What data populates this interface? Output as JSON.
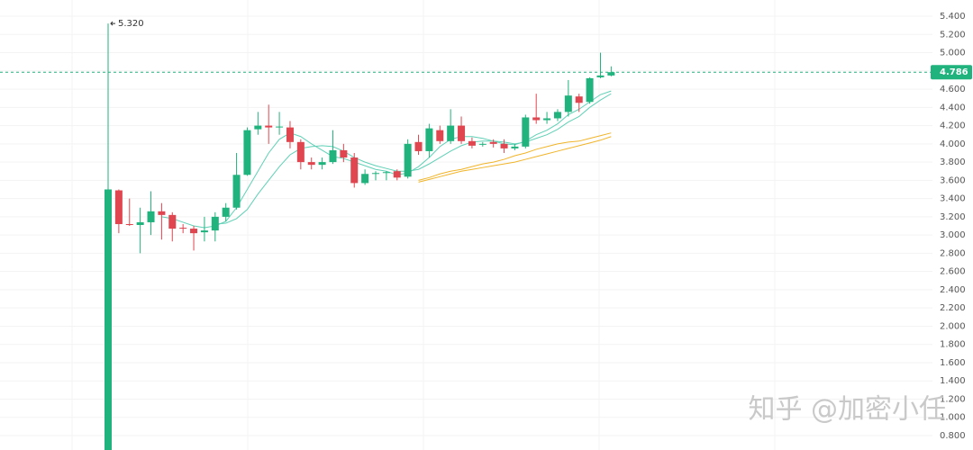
{
  "chart_data": {
    "type": "candlestick",
    "categories": [
      null,
      null,
      null,
      null,
      null,
      null,
      null,
      null,
      null,
      null,
      null,
      null,
      null,
      null,
      null,
      null,
      null,
      null,
      null,
      null,
      null,
      null,
      null,
      null,
      null,
      null,
      null,
      null,
      null,
      null,
      null,
      null,
      null,
      null,
      null,
      null,
      null,
      null,
      null,
      null,
      null,
      null,
      null,
      null,
      null,
      null,
      null,
      null
    ],
    "open": [
      0.6,
      3.49,
      3.12,
      3.11,
      3.14,
      3.26,
      3.22,
      3.08,
      3.07,
      3.03,
      3.05,
      3.2,
      3.3,
      3.66,
      4.16,
      4.2,
      4.18,
      4.18,
      4.02,
      3.8,
      3.77,
      3.8,
      3.93,
      3.85,
      3.57,
      3.67,
      3.68,
      3.7,
      3.64,
      4.02,
      3.92,
      4.15,
      4.03,
      4.2,
      4.03,
      3.99,
      4.02,
      4.0,
      3.95,
      3.97,
      4.29,
      4.26,
      4.28,
      4.35,
      4.52,
      4.46,
      4.73,
      4.75
    ],
    "high": [
      5.32,
      3.5,
      3.4,
      3.3,
      3.48,
      3.35,
      3.25,
      3.12,
      3.1,
      3.2,
      3.25,
      3.35,
      3.9,
      4.18,
      4.35,
      4.43,
      4.35,
      4.25,
      4.05,
      3.85,
      3.85,
      4.15,
      4.0,
      3.9,
      3.72,
      3.7,
      3.7,
      3.72,
      4.05,
      4.1,
      4.22,
      4.2,
      4.38,
      4.3,
      4.07,
      4.02,
      4.05,
      4.05,
      4.0,
      4.32,
      4.55,
      4.35,
      4.38,
      4.7,
      4.55,
      4.73,
      5.0,
      4.85
    ],
    "low": [
      0.6,
      3.02,
      3.1,
      2.8,
      3.0,
      2.95,
      2.93,
      3.02,
      2.83,
      2.93,
      2.93,
      3.15,
      3.28,
      3.65,
      4.1,
      4.0,
      4.1,
      3.95,
      3.72,
      3.72,
      3.72,
      3.78,
      3.8,
      3.52,
      3.55,
      3.6,
      3.6,
      3.6,
      3.62,
      3.88,
      3.85,
      4.0,
      4.0,
      4.0,
      3.95,
      3.97,
      3.96,
      3.9,
      3.93,
      3.95,
      4.22,
      4.22,
      4.25,
      4.3,
      4.35,
      4.44,
      4.72,
      4.74
    ],
    "close": [
      3.5,
      3.12,
      3.11,
      3.14,
      3.26,
      3.22,
      3.07,
      3.07,
      3.02,
      3.05,
      3.2,
      3.3,
      3.66,
      4.15,
      4.2,
      4.18,
      4.19,
      4.02,
      3.8,
      3.77,
      3.8,
      3.93,
      3.85,
      3.57,
      3.67,
      3.68,
      3.69,
      3.63,
      4.0,
      3.92,
      4.17,
      4.03,
      4.2,
      4.03,
      3.98,
      4.0,
      4.0,
      3.95,
      3.97,
      4.29,
      4.26,
      4.28,
      4.35,
      4.53,
      4.45,
      4.72,
      4.75,
      4.786
    ],
    "up_color": "#20b37e",
    "down_color": "#e0464f",
    "series": [
      {
        "color": "#5fd0b5",
        "values": [
          null,
          null,
          null,
          null,
          null,
          3.2,
          3.18,
          3.14,
          3.1,
          3.08,
          3.1,
          3.15,
          3.3,
          3.5,
          3.7,
          3.9,
          4.05,
          4.12,
          4.08,
          4.0,
          3.93,
          3.86,
          3.84,
          3.8,
          3.76,
          3.72,
          3.7,
          3.66,
          3.68,
          3.75,
          3.85,
          3.97,
          4.05,
          4.08,
          4.08,
          4.06,
          4.03,
          4.0,
          3.99,
          4.03,
          4.1,
          4.15,
          4.22,
          4.32,
          4.38,
          4.46,
          4.54,
          4.58
        ]
      },
      {
        "color": "#5fd0b5",
        "values": [
          null,
          null,
          null,
          null,
          null,
          null,
          null,
          null,
          null,
          null,
          3.12,
          3.13,
          3.18,
          3.28,
          3.45,
          3.6,
          3.75,
          3.88,
          3.95,
          3.97,
          3.98,
          3.97,
          3.92,
          3.85,
          3.8,
          3.76,
          3.73,
          3.7,
          3.7,
          3.72,
          3.78,
          3.85,
          3.92,
          3.98,
          4.02,
          4.03,
          4.03,
          4.02,
          4.0,
          4.02,
          4.06,
          4.1,
          4.16,
          4.24,
          4.3,
          4.4,
          4.48,
          4.55
        ]
      },
      {
        "color": "#f0b429",
        "values": [
          null,
          null,
          null,
          null,
          null,
          null,
          null,
          null,
          null,
          null,
          null,
          null,
          null,
          null,
          null,
          null,
          null,
          null,
          null,
          null,
          null,
          null,
          null,
          null,
          null,
          null,
          null,
          null,
          null,
          3.6,
          3.63,
          3.67,
          3.7,
          3.72,
          3.75,
          3.78,
          3.8,
          3.83,
          3.87,
          3.9,
          3.94,
          3.97,
          4.0,
          4.02,
          4.03,
          4.06,
          4.09,
          4.12
        ]
      },
      {
        "color": "#f0b429",
        "values": [
          null,
          null,
          null,
          null,
          null,
          null,
          null,
          null,
          null,
          null,
          null,
          null,
          null,
          null,
          null,
          null,
          null,
          null,
          null,
          null,
          null,
          null,
          null,
          null,
          null,
          null,
          null,
          null,
          null,
          3.58,
          3.61,
          3.64,
          3.67,
          3.7,
          3.72,
          3.74,
          3.76,
          3.78,
          3.8,
          3.83,
          3.86,
          3.89,
          3.92,
          3.95,
          3.98,
          4.01,
          4.04,
          4.08
        ]
      }
    ],
    "ylim": [
      0.642,
      5.578
    ],
    "yticks": [
      {
        "value": 0.8,
        "label": "0.800"
      },
      {
        "value": 1.0,
        "label": "1.000"
      },
      {
        "value": 1.2,
        "label": "1.200"
      },
      {
        "value": 1.4,
        "label": "1.400"
      },
      {
        "value": 1.6,
        "label": "1.600"
      },
      {
        "value": 1.8,
        "label": "1.800"
      },
      {
        "value": 2.0,
        "label": "2.000"
      },
      {
        "value": 2.2,
        "label": "2.200"
      },
      {
        "value": 2.4,
        "label": "2.400"
      },
      {
        "value": 2.6,
        "label": "2.600"
      },
      {
        "value": 2.8,
        "label": "2.800"
      },
      {
        "value": 3.0,
        "label": "3.000"
      },
      {
        "value": 3.2,
        "label": "3.200"
      },
      {
        "value": 3.4,
        "label": "3.400"
      },
      {
        "value": 3.6,
        "label": "3.600"
      },
      {
        "value": 3.8,
        "label": "3.800"
      },
      {
        "value": 4.0,
        "label": "4.000"
      },
      {
        "value": 4.2,
        "label": "4.200"
      },
      {
        "value": 4.4,
        "label": "4.400"
      },
      {
        "value": 4.6,
        "label": "4.600"
      },
      {
        "value": 4.8,
        "label": "4.800"
      },
      {
        "value": 5.0,
        "label": "5.000"
      },
      {
        "value": 5.2,
        "label": "5.200"
      },
      {
        "value": 5.4,
        "label": "5.400"
      }
    ],
    "grid": true,
    "high_annotation": {
      "value": 5.32,
      "label": "5.320"
    },
    "last_price": {
      "value": 4.786,
      "label": "4.786"
    },
    "watermark": "知乎 @加密小任"
  }
}
